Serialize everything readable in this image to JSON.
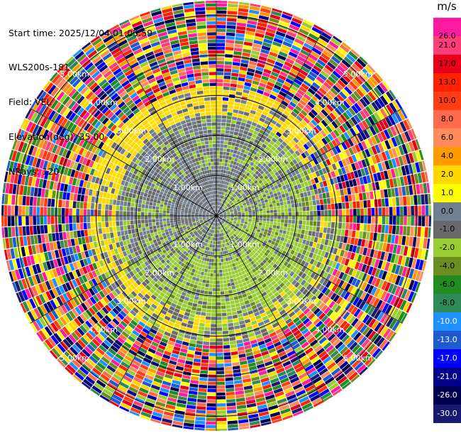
{
  "info": {
    "start_time": "Start time: 2025/12/04 01:05:59",
    "instrument": "WLS200s-181",
    "field": "Field: VEL",
    "elevation": "Elevation(deg): 35.00",
    "nrays": "NRays: 120"
  },
  "colorbar": {
    "unit": "m/s",
    "ticks": [
      "26.0",
      "21.0",
      "17.0",
      "13.0",
      "10.0",
      "8.0",
      "6.0",
      "4.0",
      "2.0",
      "1.0",
      "0.0",
      "-1.0",
      "-2.0",
      "-4.0",
      "-6.0",
      "-8.0",
      "-10.0",
      "-13.0",
      "-17.0",
      "-21.0",
      "-26.0",
      "-30.0"
    ],
    "colors": [
      "#ff1aa0",
      "#ff3d77",
      "#e8001a",
      "#ff2200",
      "#ff3c12",
      "#ff6a4a",
      "#ff8c5a",
      "#ff9900",
      "#ffd700",
      "#ffff00",
      "#708090",
      "#696969",
      "#9acd32",
      "#6b8e23",
      "#228b22",
      "#2e8b57",
      "#1e90ff",
      "#1e5ad2",
      "#0000ff",
      "#00008b",
      "#000050",
      "#191970"
    ]
  },
  "chart_data": {
    "type": "ppi",
    "title": "",
    "field": "VEL",
    "unit": "m/s",
    "elevation_deg": 35.0,
    "n_rays": 120,
    "range_rings_km": [
      1.0,
      2.0,
      3.0,
      4.0,
      5.0
    ],
    "ring_labels": [
      "1.00km",
      "2.00km",
      "3.00km",
      "4.00km",
      "5.00km"
    ],
    "max_range_km": 5.4,
    "spokes_every_deg": 30,
    "value_regions": [
      {
        "range_km": [
          0.0,
          1.2
        ],
        "typical_ms": [
          -1.0,
          1.0
        ],
        "description": "gray near-zero"
      },
      {
        "range_km": [
          1.2,
          2.6
        ],
        "typical_ms": [
          -2.0,
          0.0
        ],
        "description": "green negative south, gray north"
      },
      {
        "range_km": [
          2.6,
          3.2
        ],
        "typical_ms": [
          2.0,
          4.0
        ],
        "description": "yellow positive ring (north/west)"
      },
      {
        "range_km": [
          3.2,
          5.4
        ],
        "typical_ms": [
          -30.0,
          26.0
        ],
        "description": "noise beyond signal range"
      }
    ]
  }
}
